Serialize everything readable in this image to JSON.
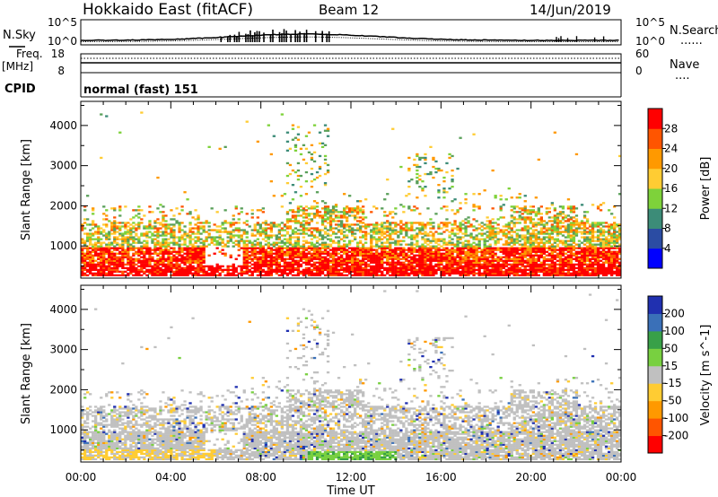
{
  "header": {
    "station": "Hokkaido East (fitACF)",
    "beam": "Beam 12",
    "date": "14/Jun/2019"
  },
  "noise_panel": {
    "left_label": "N.Sky",
    "left_ticks": [
      "10^5",
      "10^0"
    ],
    "right_ticks": [
      "10^5",
      "10^0"
    ],
    "right_label": "N.Search",
    "right_legend_line": "......"
  },
  "freq_panel": {
    "left_label_top": "Freq.",
    "left_label_unit": "[MHz]",
    "left_ticks": [
      "18",
      "8"
    ],
    "right_ticks": [
      "60",
      "0"
    ],
    "right_label": "Nave",
    "right_legend_line": "...."
  },
  "cpid_panel": {
    "label": "CPID",
    "value": "normal (fast) 151"
  },
  "x_axis": {
    "title": "Time UT",
    "ticks": [
      "00:00",
      "04:00",
      "08:00",
      "12:00",
      "16:00",
      "20:00",
      "00:00"
    ]
  },
  "colors": {
    "power_scale": [
      "#0000ff",
      "#2b4ca3",
      "#3c8c78",
      "#5aa05a",
      "#7ed23a",
      "#ffcc33",
      "#ff9900",
      "#ff5500",
      "#ff0000"
    ],
    "velocity_scale": [
      "#2030b0",
      "#3a70b8",
      "#38a048",
      "#78d040",
      "#c0c0c0",
      "#ffcc33",
      "#ff9900",
      "#ff5500",
      "#ff0000"
    ]
  },
  "chart_data": [
    {
      "type": "heatmap",
      "panel": "power",
      "xlabel": "",
      "ylabel": "Slant Range [km]",
      "x_ticks": [
        "00:00",
        "04:00",
        "08:00",
        "12:00",
        "16:00",
        "20:00",
        "00:00"
      ],
      "x_range_hours": [
        0,
        24
      ],
      "y_ticks": [
        1000,
        2000,
        3000,
        4000
      ],
      "ylim": [
        200,
        4600
      ],
      "colorbar": {
        "label": "Power [dB]",
        "ticks": [
          4,
          8,
          12,
          16,
          20,
          24,
          28
        ],
        "range": [
          0,
          32
        ]
      },
      "regions": [
        {
          "t0": 0.0,
          "t1": 24.0,
          "r0": 250,
          "r1": 950,
          "level": "high",
          "note": "strong near-range echoes"
        },
        {
          "t0": 0.0,
          "t1": 6.5,
          "r0": 900,
          "r1": 1600,
          "level": "medium"
        },
        {
          "t0": 6.5,
          "t1": 19.0,
          "r0": 1000,
          "r1": 1950,
          "level": "medium"
        },
        {
          "t0": 19.0,
          "t1": 24.0,
          "r0": 1000,
          "r1": 2000,
          "level": "high"
        },
        {
          "t0": 9.0,
          "t1": 11.0,
          "r0": 2500,
          "r1": 4000,
          "level": "scattered"
        },
        {
          "t0": 14.5,
          "t1": 16.5,
          "r0": 2600,
          "r1": 3300,
          "level": "scattered"
        }
      ]
    },
    {
      "type": "heatmap",
      "panel": "velocity",
      "xlabel": "Time UT",
      "ylabel": "Slant Range [km]",
      "x_ticks": [
        "00:00",
        "04:00",
        "08:00",
        "12:00",
        "16:00",
        "20:00",
        "00:00"
      ],
      "x_range_hours": [
        0,
        24
      ],
      "y_ticks": [
        1000,
        2000,
        3000,
        4000
      ],
      "ylim": [
        200,
        4600
      ],
      "colorbar": {
        "label": "Velocity [m s^-1]",
        "ticks": [
          200,
          100,
          50,
          15,
          -15,
          -50,
          -100,
          -200
        ],
        "range": [
          -250,
          250
        ]
      },
      "regions": [
        {
          "t0": 0.0,
          "t1": 24.0,
          "r0": 250,
          "r1": 1600,
          "level": "near zero (ground scatter)"
        },
        {
          "t0": 10.0,
          "t1": 14.0,
          "r0": 250,
          "r1": 450,
          "level": "positive ~50"
        },
        {
          "t0": 0.0,
          "t1": 6.0,
          "r0": 250,
          "r1": 500,
          "level": "negative ~-30"
        }
      ]
    }
  ]
}
